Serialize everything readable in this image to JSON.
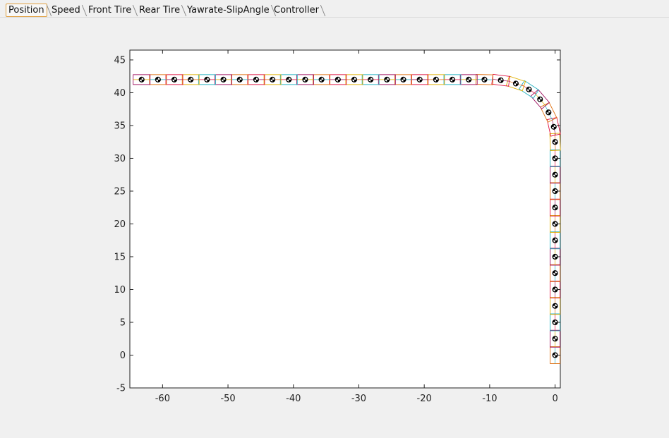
{
  "tabs": [
    {
      "label": "Position",
      "active": true
    },
    {
      "label": "Speed",
      "active": false
    },
    {
      "label": "Front Tire",
      "active": false
    },
    {
      "label": "Rear Tire",
      "active": false
    },
    {
      "label": "Yawrate-SlipAngle",
      "active": false
    },
    {
      "label": "Controller",
      "active": false
    }
  ],
  "chart_data": {
    "type": "scatter",
    "title": "",
    "xlabel": "",
    "ylabel": "",
    "xlim": [
      -65,
      0.8
    ],
    "ylim": [
      -5,
      46.5
    ],
    "xticks": [
      -60,
      -50,
      -40,
      -30,
      -20,
      -10,
      0
    ],
    "yticks": [
      -5,
      0,
      5,
      10,
      15,
      20,
      25,
      30,
      35,
      40,
      45
    ],
    "grid": false,
    "series": [
      {
        "marker": "black circle",
        "x": [
          0,
          0,
          0,
          0,
          0,
          0,
          0,
          0,
          0,
          0,
          0,
          0,
          0,
          0,
          -0.2,
          -1.0,
          -2.3,
          -4.0,
          -6.0,
          -8.3,
          -10.8,
          -13.2,
          -15.7,
          -18.2,
          -20.7,
          -23.2,
          -25.7,
          -28.2,
          -30.7,
          -33.2,
          -35.7,
          -38.2,
          -40.7,
          -43.2,
          -45.7,
          -48.2,
          -50.7,
          -53.2,
          -55.7,
          -58.2,
          -60.7,
          -63.2
        ],
        "y": [
          0,
          2.5,
          5,
          7.5,
          10,
          12.5,
          15,
          17.5,
          20,
          22.5,
          25,
          27.5,
          30,
          32.5,
          34.8,
          37.0,
          39.0,
          40.5,
          41.4,
          41.9,
          42.0,
          42.0,
          42.0,
          42.0,
          42.0,
          42.0,
          42.0,
          42.0,
          42.0,
          42.0,
          42.0,
          42.0,
          42.0,
          42.0,
          42.0,
          42.0,
          42.0,
          42.0,
          42.0,
          42.0,
          42.0,
          42.0
        ]
      }
    ],
    "vehicle_box_colors": [
      "#e07010",
      "#a01060",
      "#20b0c0",
      "#e0b000",
      "#e01040"
    ]
  }
}
